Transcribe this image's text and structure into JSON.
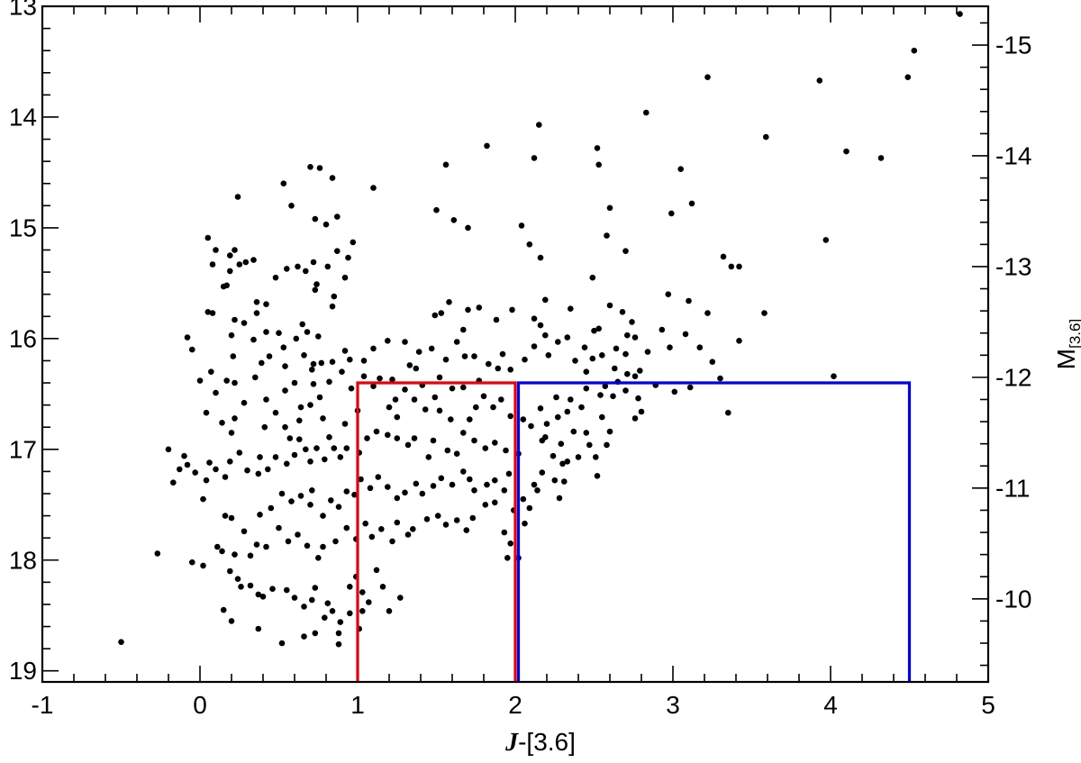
{
  "chart_data": {
    "type": "scatter",
    "title": "",
    "xlabel": {
      "variable": "J",
      "rest": "-[3.6]"
    },
    "ylabel": "",
    "ylabel_right": {
      "base": "M",
      "subscript": "[3.6]"
    },
    "xlim": [
      -1,
      5
    ],
    "ylim": [
      13,
      19.1
    ],
    "y_inverted": true,
    "y_right_lim": [
      -15.35,
      -9.25
    ],
    "x_ticks": [
      -1,
      0,
      1,
      2,
      3,
      4,
      5
    ],
    "x_tick_labels": [
      "-1",
      "0",
      "1",
      "2",
      "3",
      "4",
      "5"
    ],
    "y_ticks": [
      13,
      14,
      15,
      16,
      17,
      18,
      19
    ],
    "y_tick_labels": [
      "13",
      "14",
      "15",
      "16",
      "17",
      "18",
      "19"
    ],
    "y_right_ticks": [
      -15,
      -14,
      -13,
      -12,
      -11,
      -10
    ],
    "y_right_tick_labels": [
      "-15",
      "-14",
      "-13",
      "-12",
      "-11",
      "-10"
    ],
    "grid": false,
    "marker_color": "#000000",
    "regions": [
      {
        "x": [
          1.0,
          2.0
        ],
        "y": [
          16.4,
          19.1
        ],
        "color": "#e8000b"
      },
      {
        "x": [
          2.02,
          4.5
        ],
        "y": [
          16.4,
          19.1
        ],
        "color": "#0000ee"
      }
    ],
    "points": [
      [
        4.82,
        13.07
      ],
      [
        4.53,
        13.4
      ],
      [
        4.49,
        13.64
      ],
      [
        3.93,
        13.67
      ],
      [
        3.22,
        13.64
      ],
      [
        2.83,
        13.96
      ],
      [
        2.15,
        14.07
      ],
      [
        4.32,
        14.37
      ],
      [
        4.1,
        14.31
      ],
      [
        3.59,
        14.18
      ],
      [
        2.52,
        14.28
      ],
      [
        2.53,
        14.43
      ],
      [
        2.12,
        14.37
      ],
      [
        1.82,
        14.26
      ],
      [
        1.56,
        14.43
      ],
      [
        1.1,
        14.64
      ],
      [
        0.84,
        14.55
      ],
      [
        0.76,
        14.46
      ],
      [
        0.7,
        14.45
      ],
      [
        0.53,
        14.6
      ],
      [
        0.24,
        14.72
      ],
      [
        0.58,
        14.8
      ],
      [
        0.73,
        14.92
      ],
      [
        0.8,
        14.97
      ],
      [
        0.87,
        14.9
      ],
      [
        1.5,
        14.84
      ],
      [
        1.61,
        14.93
      ],
      [
        1.7,
        15.0
      ],
      [
        2.04,
        14.98
      ],
      [
        2.6,
        14.82
      ],
      [
        2.99,
        14.87
      ],
      [
        3.05,
        14.47
      ],
      [
        3.12,
        14.78
      ],
      [
        2.58,
        15.07
      ],
      [
        2.09,
        15.15
      ],
      [
        2.16,
        15.27
      ],
      [
        2.7,
        15.21
      ],
      [
        3.32,
        15.26
      ],
      [
        3.37,
        15.35
      ],
      [
        3.42,
        15.35
      ],
      [
        0.05,
        15.09
      ],
      [
        0.1,
        15.2
      ],
      [
        0.19,
        15.25
      ],
      [
        0.22,
        15.2
      ],
      [
        0.08,
        15.33
      ],
      [
        0.25,
        15.33
      ],
      [
        0.19,
        15.39
      ],
      [
        0.29,
        15.31
      ],
      [
        0.34,
        15.29
      ],
      [
        0.15,
        15.53
      ],
      [
        0.17,
        15.52
      ],
      [
        0.48,
        15.45
      ],
      [
        0.55,
        15.37
      ],
      [
        0.62,
        15.35
      ],
      [
        0.67,
        15.39
      ],
      [
        0.72,
        15.31
      ],
      [
        0.81,
        15.35
      ],
      [
        0.87,
        15.21
      ],
      [
        0.94,
        15.27
      ],
      [
        0.97,
        15.13
      ],
      [
        0.92,
        15.45
      ],
      [
        0.85,
        15.62
      ],
      [
        0.74,
        15.51
      ],
      [
        0.73,
        15.56
      ],
      [
        0.84,
        15.71
      ],
      [
        0.36,
        15.67
      ],
      [
        0.36,
        15.77
      ],
      [
        0.42,
        15.69
      ],
      [
        0.22,
        15.83
      ],
      [
        0.28,
        15.86
      ],
      [
        0.05,
        15.76
      ],
      [
        0.08,
        15.77
      ],
      [
        -0.08,
        15.99
      ],
      [
        -0.05,
        16.1
      ],
      [
        0.2,
        15.97
      ],
      [
        0.21,
        16.16
      ],
      [
        0.34,
        16.01
      ],
      [
        0.42,
        15.94
      ],
      [
        0.5,
        15.95
      ],
      [
        0.53,
        16.08
      ],
      [
        0.61,
        16.0
      ],
      [
        0.65,
        15.87
      ],
      [
        0.68,
        15.94
      ],
      [
        0.75,
        15.98
      ],
      [
        0.66,
        16.15
      ],
      [
        0.72,
        16.23
      ],
      [
        0.77,
        16.22
      ],
      [
        0.84,
        16.21
      ],
      [
        0.92,
        16.11
      ],
      [
        0.95,
        16.19
      ],
      [
        0.9,
        16.3
      ],
      [
        0.82,
        16.39
      ],
      [
        0.71,
        16.28
      ],
      [
        0.72,
        16.41
      ],
      [
        0.6,
        16.4
      ],
      [
        0.54,
        16.25
      ],
      [
        0.54,
        16.47
      ],
      [
        0.44,
        16.16
      ],
      [
        0.39,
        16.22
      ],
      [
        0.35,
        16.35
      ],
      [
        0.17,
        16.38
      ],
      [
        0.22,
        16.4
      ],
      [
        0.07,
        16.3
      ],
      [
        0.0,
        16.38
      ],
      [
        0.1,
        16.49
      ],
      [
        0.04,
        16.67
      ],
      [
        0.14,
        16.76
      ],
      [
        0.2,
        16.85
      ],
      [
        0.22,
        16.72
      ],
      [
        0.28,
        16.58
      ],
      [
        0.42,
        16.55
      ],
      [
        0.48,
        16.67
      ],
      [
        0.41,
        16.8
      ],
      [
        0.54,
        16.8
      ],
      [
        0.57,
        16.9
      ],
      [
        0.63,
        16.74
      ],
      [
        0.64,
        16.62
      ],
      [
        0.7,
        16.6
      ],
      [
        0.76,
        16.53
      ],
      [
        0.78,
        16.72
      ],
      [
        0.82,
        16.89
      ],
      [
        0.92,
        16.77
      ],
      [
        1.0,
        16.65
      ],
      [
        0.96,
        16.45
      ],
      [
        1.1,
        16.43
      ],
      [
        1.04,
        16.34
      ],
      [
        1.14,
        16.36
      ],
      [
        1.22,
        16.37
      ],
      [
        1.3,
        16.46
      ],
      [
        1.24,
        16.55
      ],
      [
        1.33,
        16.24
      ],
      [
        1.37,
        16.27
      ],
      [
        1.41,
        16.42
      ],
      [
        1.52,
        16.35
      ],
      [
        1.6,
        16.45
      ],
      [
        1.67,
        16.44
      ],
      [
        1.77,
        16.38
      ],
      [
        1.83,
        16.23
      ],
      [
        1.89,
        16.27
      ],
      [
        1.92,
        16.14
      ],
      [
        1.97,
        16.28
      ],
      [
        2.06,
        16.19
      ],
      [
        2.12,
        16.07
      ],
      [
        2.16,
        15.88
      ],
      [
        2.19,
        15.97
      ],
      [
        2.21,
        16.15
      ],
      [
        2.27,
        16.03
      ],
      [
        2.33,
        15.99
      ],
      [
        2.38,
        16.2
      ],
      [
        2.44,
        16.08
      ],
      [
        2.5,
        15.93
      ],
      [
        2.53,
        15.91
      ],
      [
        2.55,
        16.15
      ],
      [
        2.64,
        16.09
      ],
      [
        2.71,
        15.97
      ],
      [
        2.76,
        15.99
      ],
      [
        2.7,
        16.14
      ],
      [
        2.76,
        16.34
      ],
      [
        2.84,
        16.12
      ],
      [
        2.93,
        15.92
      ],
      [
        2.98,
        16.08
      ],
      [
        3.08,
        15.96
      ],
      [
        3.17,
        16.08
      ],
      [
        3.25,
        16.21
      ],
      [
        3.1,
        15.66
      ],
      [
        3.22,
        15.77
      ],
      [
        2.97,
        15.6
      ],
      [
        3.58,
        15.77
      ],
      [
        3.42,
        16.02
      ],
      [
        3.3,
        16.36
      ],
      [
        3.35,
        16.67
      ],
      [
        4.02,
        16.34
      ],
      [
        3.97,
        15.11
      ],
      [
        2.49,
        15.45
      ],
      [
        2.6,
        15.7
      ],
      [
        2.68,
        15.76
      ],
      [
        2.74,
        15.85
      ],
      [
        2.35,
        15.73
      ],
      [
        2.19,
        15.65
      ],
      [
        2.12,
        15.82
      ],
      [
        1.98,
        15.74
      ],
      [
        1.88,
        15.83
      ],
      [
        1.77,
        15.72
      ],
      [
        1.7,
        15.74
      ],
      [
        1.67,
        15.92
      ],
      [
        1.58,
        15.67
      ],
      [
        1.53,
        15.77
      ],
      [
        1.49,
        15.79
      ],
      [
        1.63,
        16.03
      ],
      [
        1.74,
        16.16
      ],
      [
        1.68,
        16.16
      ],
      [
        1.56,
        16.19
      ],
      [
        1.47,
        16.09
      ],
      [
        1.39,
        16.12
      ],
      [
        1.3,
        16.03
      ],
      [
        1.19,
        16.02
      ],
      [
        1.1,
        16.09
      ],
      [
        1.04,
        16.2
      ],
      [
        1.2,
        16.62
      ],
      [
        1.25,
        16.71
      ],
      [
        1.36,
        16.55
      ],
      [
        1.43,
        16.64
      ],
      [
        1.49,
        16.53
      ],
      [
        1.52,
        16.65
      ],
      [
        1.59,
        16.73
      ],
      [
        1.67,
        16.85
      ],
      [
        1.71,
        16.73
      ],
      [
        1.75,
        16.62
      ],
      [
        1.8,
        16.52
      ],
      [
        1.86,
        16.62
      ],
      [
        1.91,
        16.55
      ],
      [
        1.97,
        16.7
      ],
      [
        2.05,
        16.73
      ],
      [
        2.1,
        16.79
      ],
      [
        2.16,
        16.63
      ],
      [
        2.2,
        16.77
      ],
      [
        2.27,
        16.71
      ],
      [
        2.33,
        16.66
      ],
      [
        2.42,
        16.62
      ],
      [
        2.45,
        16.85
      ],
      [
        2.55,
        16.71
      ],
      [
        2.6,
        16.84
      ],
      [
        2.58,
        16.96
      ],
      [
        2.47,
        16.96
      ],
      [
        2.37,
        16.84
      ],
      [
        2.29,
        16.95
      ],
      [
        2.19,
        16.89
      ],
      [
        2.24,
        17.06
      ],
      [
        2.33,
        17.11
      ],
      [
        2.4,
        17.07
      ],
      [
        2.51,
        17.07
      ],
      [
        2.52,
        17.24
      ],
      [
        2.31,
        17.29
      ],
      [
        2.17,
        17.21
      ],
      [
        2.14,
        17.37
      ],
      [
        2.02,
        17.04
      ],
      [
        1.94,
        17.01
      ],
      [
        1.87,
        16.94
      ],
      [
        1.81,
        16.99
      ],
      [
        1.74,
        16.92
      ],
      [
        1.63,
        17.04
      ],
      [
        1.57,
        17.01
      ],
      [
        1.48,
        16.92
      ],
      [
        1.45,
        17.07
      ],
      [
        1.36,
        16.9
      ],
      [
        1.32,
        16.96
      ],
      [
        1.25,
        16.9
      ],
      [
        1.19,
        16.87
      ],
      [
        1.12,
        16.84
      ],
      [
        1.06,
        16.9
      ],
      [
        1.01,
        17.03
      ],
      [
        0.93,
        16.99
      ],
      [
        0.89,
        17.07
      ],
      [
        0.85,
        16.99
      ],
      [
        0.79,
        17.09
      ],
      [
        0.74,
        16.99
      ],
      [
        0.7,
        17.11
      ],
      [
        0.67,
        17.0
      ],
      [
        0.63,
        16.91
      ],
      [
        0.6,
        17.05
      ],
      [
        0.55,
        17.13
      ],
      [
        0.48,
        17.07
      ],
      [
        0.43,
        17.18
      ],
      [
        0.38,
        17.07
      ],
      [
        0.37,
        17.22
      ],
      [
        0.3,
        17.19
      ],
      [
        0.25,
        17.03
      ],
      [
        0.19,
        17.11
      ],
      [
        0.16,
        17.25
      ],
      [
        0.1,
        17.18
      ],
      [
        0.06,
        17.12
      ],
      [
        0.04,
        17.28
      ],
      [
        -0.03,
        17.21
      ],
      [
        -0.08,
        17.14
      ],
      [
        -0.13,
        17.18
      ],
      [
        -0.17,
        17.3
      ],
      [
        -0.2,
        17.0
      ],
      [
        -0.1,
        17.06
      ],
      [
        0.02,
        17.45
      ],
      [
        0.16,
        17.6
      ],
      [
        0.2,
        17.62
      ],
      [
        0.38,
        17.59
      ],
      [
        0.45,
        17.53
      ],
      [
        0.52,
        17.4
      ],
      [
        0.58,
        17.47
      ],
      [
        0.64,
        17.42
      ],
      [
        0.71,
        17.37
      ],
      [
        0.7,
        17.5
      ],
      [
        0.78,
        17.6
      ],
      [
        0.83,
        17.46
      ],
      [
        0.88,
        17.52
      ],
      [
        0.93,
        17.38
      ],
      [
        0.98,
        17.41
      ],
      [
        1.02,
        17.27
      ],
      [
        1.08,
        17.35
      ],
      [
        1.13,
        17.25
      ],
      [
        1.19,
        17.34
      ],
      [
        1.25,
        17.44
      ],
      [
        1.3,
        17.39
      ],
      [
        1.37,
        17.31
      ],
      [
        1.41,
        17.4
      ],
      [
        1.48,
        17.33
      ],
      [
        1.53,
        17.26
      ],
      [
        1.6,
        17.32
      ],
      [
        1.67,
        17.2
      ],
      [
        1.71,
        17.27
      ],
      [
        1.74,
        17.37
      ],
      [
        1.82,
        17.32
      ],
      [
        1.87,
        17.28
      ],
      [
        1.93,
        17.37
      ],
      [
        1.87,
        17.48
      ],
      [
        1.81,
        17.5
      ],
      [
        1.73,
        17.62
      ],
      [
        1.69,
        17.73
      ],
      [
        1.63,
        17.64
      ],
      [
        1.56,
        17.68
      ],
      [
        1.51,
        17.6
      ],
      [
        1.44,
        17.63
      ],
      [
        1.35,
        17.72
      ],
      [
        1.32,
        17.77
      ],
      [
        1.25,
        17.66
      ],
      [
        1.22,
        17.83
      ],
      [
        1.15,
        17.72
      ],
      [
        1.09,
        17.79
      ],
      [
        1.05,
        17.67
      ],
      [
        0.99,
        17.81
      ],
      [
        0.93,
        17.71
      ],
      [
        0.86,
        17.83
      ],
      [
        0.78,
        17.88
      ],
      [
        0.75,
        17.98
      ],
      [
        0.68,
        17.87
      ],
      [
        0.62,
        17.77
      ],
      [
        0.56,
        17.83
      ],
      [
        0.5,
        17.71
      ],
      [
        0.42,
        17.88
      ],
      [
        0.36,
        17.86
      ],
      [
        0.32,
        17.96
      ],
      [
        0.28,
        17.74
      ],
      [
        0.22,
        17.95
      ],
      [
        0.14,
        17.92
      ],
      [
        0.11,
        17.88
      ],
      [
        0.02,
        18.05
      ],
      [
        -0.05,
        18.02
      ],
      [
        -0.27,
        17.94
      ],
      [
        0.19,
        18.1
      ],
      [
        0.24,
        18.17
      ],
      [
        0.26,
        18.24
      ],
      [
        0.32,
        18.23
      ],
      [
        0.37,
        18.31
      ],
      [
        0.4,
        18.33
      ],
      [
        0.46,
        18.26
      ],
      [
        0.55,
        18.27
      ],
      [
        0.6,
        18.34
      ],
      [
        0.66,
        18.42
      ],
      [
        0.71,
        18.36
      ],
      [
        0.73,
        18.25
      ],
      [
        0.79,
        18.52
      ],
      [
        0.81,
        18.39
      ],
      [
        0.84,
        18.46
      ],
      [
        0.89,
        18.56
      ],
      [
        0.95,
        18.24
      ],
      [
        0.99,
        18.15
      ],
      [
        1.03,
        18.29
      ],
      [
        1.07,
        18.38
      ],
      [
        1.12,
        18.09
      ],
      [
        1.16,
        18.24
      ],
      [
        1.2,
        18.46
      ],
      [
        1.27,
        18.34
      ],
      [
        0.88,
        18.76
      ],
      [
        0.52,
        18.75
      ],
      [
        0.37,
        18.62
      ],
      [
        0.2,
        18.55
      ],
      [
        0.15,
        18.45
      ],
      [
        0.88,
        18.66
      ],
      [
        1.01,
        18.62
      ],
      [
        1.03,
        18.46
      ],
      [
        -0.5,
        18.74
      ],
      [
        0.73,
        18.66
      ],
      [
        0.66,
        18.69
      ],
      [
        0.95,
        18.48
      ],
      [
        1.97,
        17.85
      ],
      [
        1.95,
        17.98
      ],
      [
        2.02,
        17.98
      ],
      [
        1.93,
        17.75
      ],
      [
        2.09,
        17.53
      ],
      [
        2.05,
        17.45
      ],
      [
        2.12,
        17.32
      ],
      [
        2.25,
        17.28
      ],
      [
        2.3,
        17.13
      ],
      [
        1.96,
        17.22
      ],
      [
        1.99,
        17.55
      ],
      [
        2.06,
        17.67
      ],
      [
        2.17,
        16.92
      ],
      [
        2.28,
        17.44
      ],
      [
        2.26,
        16.53
      ],
      [
        2.35,
        16.55
      ],
      [
        2.45,
        16.45
      ],
      [
        2.57,
        16.43
      ],
      [
        2.65,
        16.39
      ],
      [
        2.7,
        16.47
      ],
      [
        2.78,
        16.54
      ],
      [
        2.89,
        16.42
      ],
      [
        3.01,
        16.48
      ],
      [
        3.11,
        16.44
      ],
      [
        2.8,
        16.66
      ],
      [
        2.76,
        16.72
      ],
      [
        2.62,
        16.52
      ],
      [
        2.54,
        16.51
      ],
      [
        2.45,
        16.3
      ],
      [
        2.49,
        16.18
      ],
      [
        2.63,
        16.27
      ],
      [
        2.79,
        16.29
      ],
      [
        2.71,
        16.32
      ]
    ]
  }
}
